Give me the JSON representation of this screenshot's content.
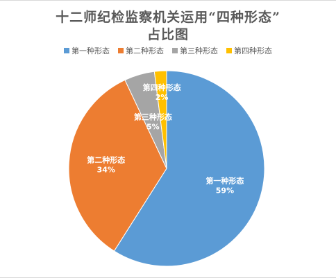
{
  "chart_data": {
    "type": "pie",
    "title_line1": "十二师纪检监察机关运用“四种形态”",
    "title_line2": "占比图",
    "categories": [
      "第一种形态",
      "第二种形态",
      "第三种形态",
      "第四种形态"
    ],
    "values": [
      59,
      34,
      5,
      2
    ],
    "data_labels": [
      "59%",
      "34%",
      "5%",
      "2%"
    ],
    "colors": [
      "#5b9bd5",
      "#ed7d31",
      "#a5a5a5",
      "#ffc000"
    ],
    "legend_position": "top",
    "start_angle_deg": 0,
    "direction": "clockwise"
  }
}
